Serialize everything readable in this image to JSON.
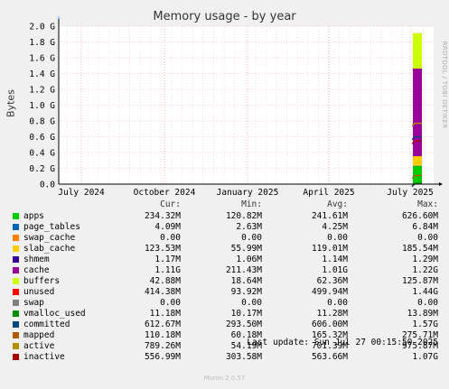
{
  "title": "Memory usage - by year",
  "vertical_text": "RRDTOOL / TOBI OETIKER",
  "footer": {
    "last_update": "Last update: Sun Jul 27 00:15:50 2025",
    "generator": "Munin 2.0.57"
  },
  "chart_data": {
    "type": "area",
    "title": "Memory usage - by year",
    "ylabel": "Bytes",
    "ylim": [
      0,
      2.0
    ],
    "y_unit": "G",
    "y_ticks": [
      "0.0",
      "0.2 G",
      "0.4 G",
      "0.6 G",
      "0.8 G",
      "1.0 G",
      "1.2 G",
      "1.4 G",
      "1.6 G",
      "1.8 G",
      "2.0 G"
    ],
    "x_ticks": [
      "July 2024",
      "October 2024",
      "January 2025",
      "April 2025",
      "July 2025"
    ],
    "grid": true,
    "columns": [
      "Cur:",
      "Min:",
      "Avg:",
      "Max:"
    ],
    "series": [
      {
        "name": "apps",
        "color": "#00cc00",
        "cur": "234.32M",
        "min": "120.82M",
        "avg": "241.61M",
        "max": "626.60M"
      },
      {
        "name": "page_tables",
        "color": "#0066b3",
        "cur": "4.09M",
        "min": "2.63M",
        "avg": "4.25M",
        "max": "6.84M"
      },
      {
        "name": "swap_cache",
        "color": "#ff8000",
        "cur": "0.00",
        "min": "0.00",
        "avg": "0.00",
        "max": "0.00"
      },
      {
        "name": "slab_cache",
        "color": "#ffcc00",
        "cur": "123.53M",
        "min": "55.99M",
        "avg": "119.01M",
        "max": "185.54M"
      },
      {
        "name": "shmem",
        "color": "#330099",
        "cur": "1.17M",
        "min": "1.06M",
        "avg": "1.14M",
        "max": "1.29M"
      },
      {
        "name": "cache",
        "color": "#990099",
        "cur": "1.11G",
        "min": "211.43M",
        "avg": "1.01G",
        "max": "1.22G"
      },
      {
        "name": "buffers",
        "color": "#ccff00",
        "cur": "42.88M",
        "min": "18.64M",
        "avg": "62.36M",
        "max": "125.87M"
      },
      {
        "name": "unused",
        "color": "#ff0000",
        "cur": "414.38M",
        "min": "93.92M",
        "avg": "499.94M",
        "max": "1.44G"
      },
      {
        "name": "swap",
        "color": "#808080",
        "cur": "0.00",
        "min": "0.00",
        "avg": "0.00",
        "max": "0.00"
      },
      {
        "name": "vmalloc_used",
        "color": "#008f00",
        "cur": "11.18M",
        "min": "10.17M",
        "avg": "11.28M",
        "max": "13.89M"
      },
      {
        "name": "committed",
        "color": "#00487d",
        "cur": "612.67M",
        "min": "293.50M",
        "avg": "606.00M",
        "max": "1.57G"
      },
      {
        "name": "mapped",
        "color": "#b35a00",
        "cur": "110.18M",
        "min": "60.18M",
        "avg": "165.32M",
        "max": "275.71M"
      },
      {
        "name": "active",
        "color": "#b38f00",
        "cur": "789.26M",
        "min": "54.19M",
        "avg": "701.39M",
        "max": "975.87M"
      },
      {
        "name": "inactive",
        "color": "#a50000",
        "cur": "556.99M",
        "min": "303.58M",
        "avg": "563.66M",
        "max": "1.07G"
      }
    ]
  }
}
